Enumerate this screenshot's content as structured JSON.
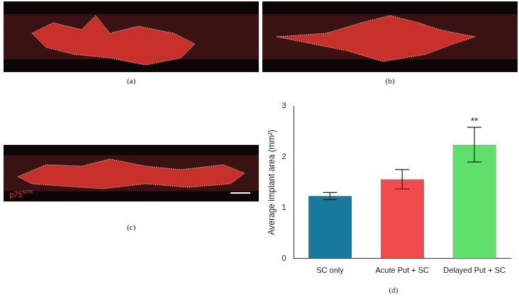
{
  "chart_data": {
    "type": "bar",
    "title": "(d)",
    "y_label": "Average implant area (mm²)",
    "categories": [
      "SC only",
      "Acute Put + SC",
      "Delayed Put + SC"
    ],
    "values": [
      1.23,
      1.56,
      2.24
    ],
    "errors": [
      0.07,
      0.19,
      0.34
    ],
    "colors": [
      "#17799b",
      "#f24b4b",
      "#5fe06b"
    ],
    "annotations": [
      {
        "category": "Delayed Put + SC",
        "text": "**"
      }
    ],
    "ylim": [
      0,
      3
    ],
    "yticks": [
      0,
      1,
      2,
      3
    ],
    "grid": false
  },
  "panels": [
    {
      "label": "(a)"
    },
    {
      "label": "(b)"
    },
    {
      "label": "(c)",
      "stain": {
        "text": "p75",
        "superscript": "NTR"
      }
    }
  ]
}
